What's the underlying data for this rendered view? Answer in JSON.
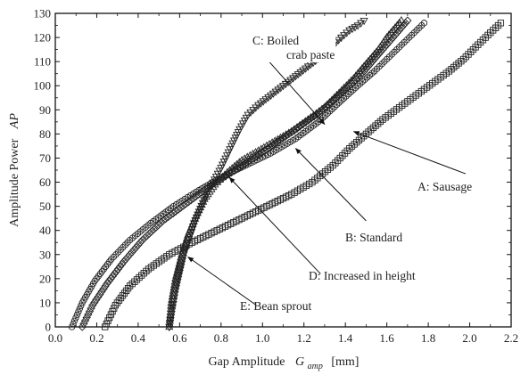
{
  "chart_data": {
    "type": "scatter",
    "title": "",
    "xlabel": "Gap Amplitude",
    "xlabel_symbol": "G",
    "xlabel_subscript": "amp",
    "xlabel_unit": "[mm]",
    "ylabel": "Amplitude Power",
    "ylabel_symbol": "AP",
    "xlim": [
      0.0,
      2.2
    ],
    "ylim": [
      0,
      130
    ],
    "xticks": [
      0.0,
      0.2,
      0.4,
      0.6,
      0.8,
      1.0,
      1.2,
      1.4,
      1.6,
      1.8,
      2.0,
      2.2
    ],
    "xtick_labels": [
      "0.0",
      "0.2",
      "0.4",
      "0.6",
      "0.8",
      "1.0",
      "1.2",
      "1.4",
      "1.6",
      "1.8",
      "2.0",
      "2.2"
    ],
    "yticks": [
      0,
      10,
      20,
      30,
      40,
      50,
      60,
      70,
      80,
      90,
      100,
      110,
      120,
      130
    ],
    "ytick_labels": [
      "0",
      "10",
      "20",
      "30",
      "40",
      "50",
      "60",
      "70",
      "80",
      "90",
      "100",
      "110",
      "120",
      "130"
    ],
    "grid": false,
    "legend": "none",
    "series": [
      {
        "id": "A",
        "marker": "square",
        "x": [
          0.24,
          0.29,
          0.36,
          0.45,
          0.55,
          0.66,
          0.78,
          0.9,
          1.02,
          1.14,
          1.24,
          1.34,
          1.42,
          1.5,
          1.58,
          1.66,
          1.74,
          1.82,
          1.9,
          1.97,
          2.04,
          2.1,
          2.15
        ],
        "y": [
          0,
          9,
          17,
          24,
          30,
          35,
          40,
          45,
          50,
          55,
          60,
          67,
          74,
          80,
          86,
          91,
          96,
          101,
          106,
          111,
          117,
          122,
          126
        ]
      },
      {
        "id": "B",
        "marker": "circle",
        "x": [
          0.08,
          0.13,
          0.19,
          0.27,
          0.36,
          0.46,
          0.57,
          0.68,
          0.8,
          0.92,
          1.04,
          1.16,
          1.27,
          1.37,
          1.46,
          1.54,
          1.6,
          1.66,
          1.72,
          1.78
        ],
        "y": [
          0,
          10,
          19,
          28,
          36,
          43,
          50,
          56,
          62,
          67,
          72,
          78,
          85,
          93,
          100,
          106,
          111,
          116,
          121,
          126
        ]
      },
      {
        "id": "C",
        "marker": "triangle-down",
        "x": [
          0.55,
          0.58,
          0.62,
          0.67,
          0.73,
          0.8,
          0.85,
          0.89,
          0.93,
          0.98,
          1.04,
          1.1,
          1.16,
          1.22,
          1.28,
          1.33,
          1.38,
          1.42,
          1.46,
          1.49
        ],
        "y": [
          0,
          15,
          30,
          43,
          55,
          66,
          75,
          82,
          88,
          92,
          96,
          100,
          104,
          108,
          112,
          116,
          120,
          123,
          125,
          127
        ]
      },
      {
        "id": "D",
        "marker": "diamond",
        "x": [
          0.13,
          0.18,
          0.25,
          0.33,
          0.42,
          0.52,
          0.63,
          0.74,
          0.85,
          0.96,
          1.06,
          1.16,
          1.26,
          1.34,
          1.42,
          1.49,
          1.55,
          1.61,
          1.66,
          1.7
        ],
        "y": [
          0,
          9,
          18,
          27,
          36,
          44,
          51,
          58,
          64,
          70,
          76,
          82,
          88,
          94,
          100,
          106,
          112,
          118,
          123,
          127
        ]
      },
      {
        "id": "E",
        "marker": "triangle-up",
        "x": [
          0.55,
          0.56,
          0.58,
          0.61,
          0.64,
          0.68,
          0.72,
          0.77,
          0.83,
          0.9,
          0.98,
          1.06,
          1.14,
          1.22,
          1.3,
          1.37,
          1.44,
          1.5,
          1.56,
          1.6,
          1.64,
          1.67
        ],
        "y": [
          0,
          10,
          20,
          30,
          38,
          46,
          53,
          59,
          64,
          69,
          73,
          77,
          81,
          86,
          91,
          97,
          103,
          109,
          115,
          120,
          124,
          127
        ]
      }
    ],
    "annotations": [
      {
        "id": "ann-a",
        "lines": [
          "A: Sausage"
        ],
        "arrow_from": [
          1.98,
          63.5
        ],
        "arrow_to": [
          1.44,
          81
        ]
      },
      {
        "id": "ann-b",
        "lines": [
          "B: Standard"
        ],
        "arrow_from": [
          1.5,
          44
        ],
        "arrow_to": [
          1.16,
          74
        ]
      },
      {
        "id": "ann-c",
        "lines": [
          "C: Boiled",
          "crab paste"
        ],
        "arrow_from": [
          0.97,
          116
        ],
        "arrow_to": [
          1.3,
          84
        ]
      },
      {
        "id": "ann-d",
        "lines": [
          "D: Increased in height"
        ],
        "arrow_from": [
          1.28,
          22
        ],
        "arrow_to": [
          0.84,
          62
        ]
      },
      {
        "id": "ann-e",
        "lines": [
          "E: Bean sprout"
        ],
        "arrow_from": [
          0.97,
          9
        ],
        "arrow_to": [
          0.64,
          29
        ]
      }
    ]
  }
}
